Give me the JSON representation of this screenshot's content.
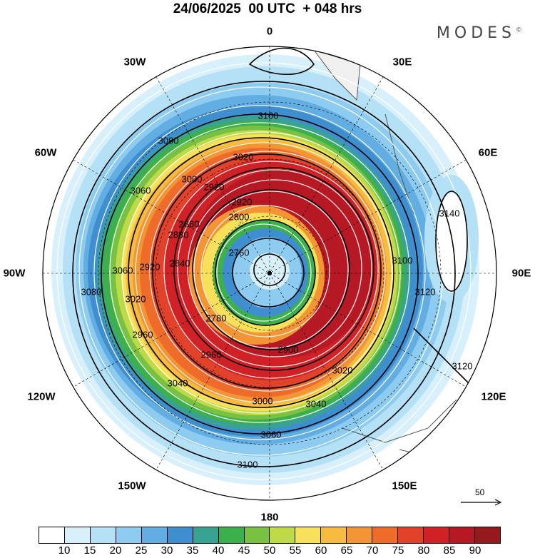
{
  "title": "24/06/2025  00 UTC  + 048 hrs",
  "brand": "MODES",
  "brand_mark": "©",
  "longitude_labels": {
    "lon_0": "0",
    "lon_30e": "30E",
    "lon_60e": "60E",
    "lon_90e": "90E",
    "lon_120e": "120E",
    "lon_150e": "150E",
    "lon_180": "180",
    "lon_150w": "150W",
    "lon_120w": "120W",
    "lon_90w": "90W",
    "lon_60w": "60W",
    "lon_30w": "30W"
  },
  "contour_labels": [
    "3100",
    "3080",
    "3060",
    "3020",
    "3000",
    "2920",
    "2880",
    "2800",
    "2760",
    "2840",
    "2780",
    "2920",
    "2960",
    "3040",
    "3000",
    "3060",
    "3140",
    "3120",
    "3100",
    "3120",
    "3100",
    "3080",
    "3060",
    "3020",
    "2960",
    "2920",
    "2880",
    "2900",
    "3020",
    "3040"
  ],
  "wind_scale": {
    "value": "50"
  },
  "colorbar": {
    "colors": [
      "#ffffff",
      "#d7f0fb",
      "#b5e1f7",
      "#8ecbf0",
      "#62aee3",
      "#3f8fd0",
      "#3aa292",
      "#3cb04b",
      "#79c143",
      "#bfda47",
      "#f8e15a",
      "#f7bc3f",
      "#f39534",
      "#ee6b2a",
      "#e3422a",
      "#cf2126",
      "#b71924",
      "#951a1e"
    ],
    "ticks": [
      "10",
      "15",
      "20",
      "25",
      "30",
      "35",
      "40",
      "45",
      "50",
      "55",
      "60",
      "65",
      "70",
      "75",
      "80",
      "85",
      "90"
    ]
  }
}
